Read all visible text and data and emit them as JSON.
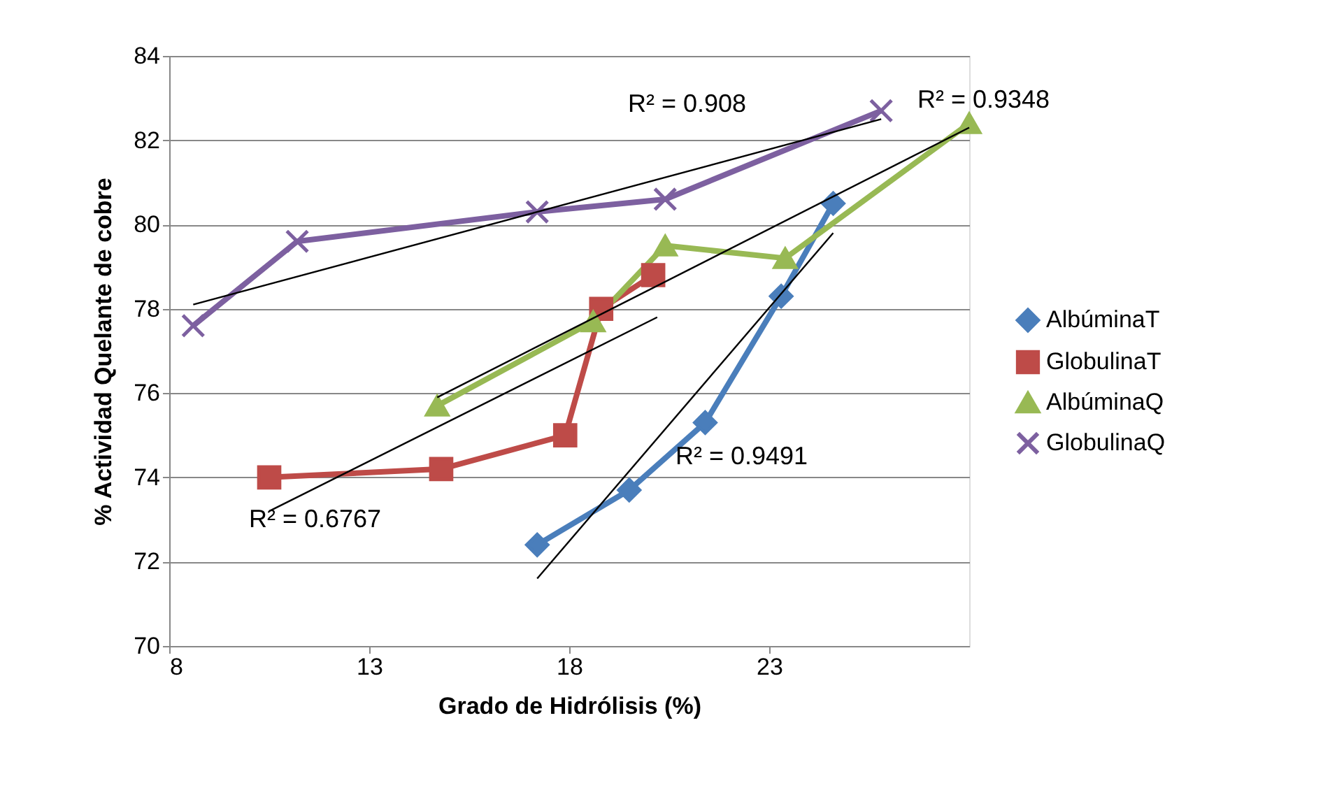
{
  "chart_data": {
    "type": "line",
    "xlabel": "Grado de Hidrólisis (%)",
    "ylabel": "% Actividad Quelante de cobre",
    "xlim": [
      8,
      28
    ],
    "xticks": [
      8,
      13,
      18,
      23
    ],
    "ylim": [
      70,
      84
    ],
    "yticks": [
      70,
      72,
      74,
      76,
      78,
      80,
      82,
      84
    ],
    "grid": "y",
    "legend": "right",
    "series": [
      {
        "name": "AlbúminaT",
        "color": "#4a7ebb",
        "marker": "diamond",
        "x": [
          17.2,
          19.5,
          21.4,
          23.3,
          24.6
        ],
        "values": [
          72.4,
          73.7,
          75.3,
          78.3,
          80.5
        ]
      },
      {
        "name": "GlobulinaT",
        "color": "#be4b48",
        "marker": "square",
        "x": [
          10.5,
          14.8,
          17.9,
          18.8,
          20.1
        ],
        "values": [
          74.0,
          74.2,
          75.0,
          78.0,
          78.8
        ]
      },
      {
        "name": "AlbúminaQ",
        "color": "#98b954",
        "marker": "triangle",
        "x": [
          14.7,
          18.6,
          20.4,
          23.4,
          28.0
        ],
        "values": [
          75.7,
          77.7,
          79.5,
          79.2,
          82.4
        ]
      },
      {
        "name": "GlobulinaQ",
        "color": "#7d60a0",
        "marker": "cross",
        "x": [
          8.6,
          11.2,
          17.2,
          20.4,
          25.8
        ],
        "values": [
          77.6,
          79.6,
          80.3,
          80.6,
          82.7
        ]
      },
      {
        "type": "line",
        "color": "#000000",
        "marker": "none",
        "x": [
          17.2,
          24.6
        ],
        "values": [
          71.6,
          79.8
        ]
      },
      {
        "type": "line",
        "color": "#000000",
        "marker": "none",
        "x": [
          10.5,
          20.2
        ],
        "values": [
          73.2,
          77.8
        ]
      },
      {
        "type": "line",
        "color": "#000000",
        "marker": "none",
        "x": [
          14.7,
          28.0
        ],
        "values": [
          75.9,
          82.3
        ]
      },
      {
        "type": "line",
        "color": "#000000",
        "marker": "none",
        "x": [
          8.6,
          25.8
        ],
        "values": [
          78.1,
          82.5
        ]
      }
    ],
    "annotations": [
      "R² = 0.908",
      "R² = 0.9348",
      "R² = 0.6767",
      "R² = 0.9491"
    ]
  }
}
